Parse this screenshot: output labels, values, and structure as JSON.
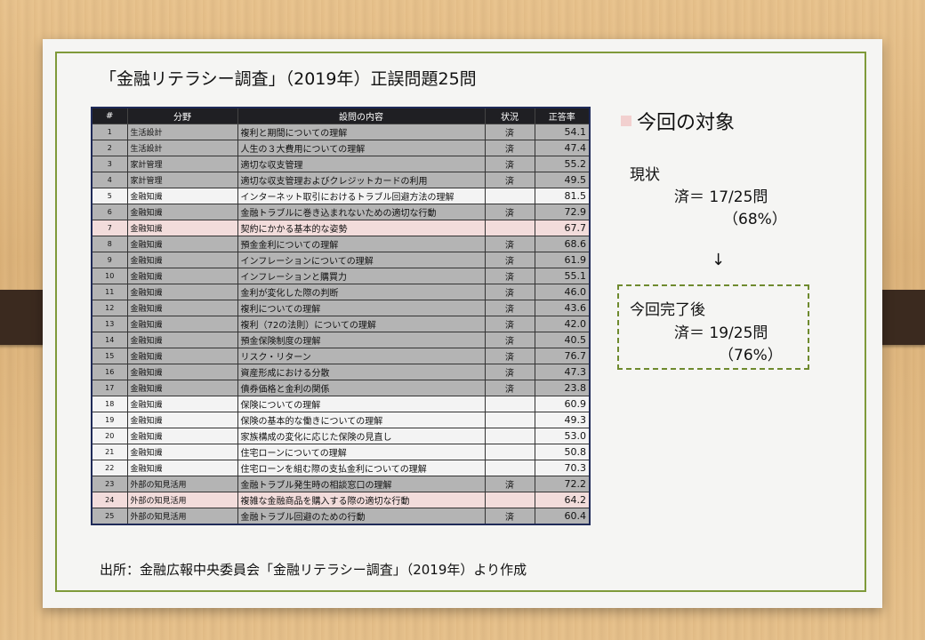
{
  "title": "「金融リテラシー調査」（2019年）正誤問題25問",
  "table": {
    "headers": [
      "#",
      "分野",
      "設問の内容",
      "状況",
      "正答率"
    ],
    "rows": [
      {
        "num": "1",
        "field": "生活設計",
        "content": "複利と期間についての理解",
        "status": "済",
        "rate": "54.1",
        "state": "done"
      },
      {
        "num": "2",
        "field": "生活設計",
        "content": "人生の３大費用についての理解",
        "status": "済",
        "rate": "47.4",
        "state": "done"
      },
      {
        "num": "3",
        "field": "家計管理",
        "content": "適切な収支管理",
        "status": "済",
        "rate": "55.2",
        "state": "done"
      },
      {
        "num": "4",
        "field": "家計管理",
        "content": "適切な収支管理およびクレジットカードの利用",
        "status": "済",
        "rate": "49.5",
        "state": "done"
      },
      {
        "num": "5",
        "field": "金融知識",
        "content": "インターネット取引におけるトラブル回避方法の理解",
        "status": "",
        "rate": "81.5",
        "state": "pending"
      },
      {
        "num": "6",
        "field": "金融知識",
        "content": "金融トラブルに巻き込まれないための適切な行動",
        "status": "済",
        "rate": "72.9",
        "state": "done"
      },
      {
        "num": "7",
        "field": "金融知識",
        "content": "契約にかかる基本的な姿勢",
        "status": "",
        "rate": "67.7",
        "state": "target"
      },
      {
        "num": "8",
        "field": "金融知識",
        "content": "預金金利についての理解",
        "status": "済",
        "rate": "68.6",
        "state": "done"
      },
      {
        "num": "9",
        "field": "金融知識",
        "content": "インフレーションについての理解",
        "status": "済",
        "rate": "61.9",
        "state": "done"
      },
      {
        "num": "10",
        "field": "金融知識",
        "content": "インフレーションと購買力",
        "status": "済",
        "rate": "55.1",
        "state": "done"
      },
      {
        "num": "11",
        "field": "金融知識",
        "content": "金利が変化した際の判断",
        "status": "済",
        "rate": "46.0",
        "state": "done"
      },
      {
        "num": "12",
        "field": "金融知識",
        "content": "複利についての理解",
        "status": "済",
        "rate": "43.6",
        "state": "done"
      },
      {
        "num": "13",
        "field": "金融知識",
        "content": "複利（72の法則）についての理解",
        "status": "済",
        "rate": "42.0",
        "state": "done"
      },
      {
        "num": "14",
        "field": "金融知識",
        "content": "預金保険制度の理解",
        "status": "済",
        "rate": "40.5",
        "state": "done"
      },
      {
        "num": "15",
        "field": "金融知識",
        "content": "リスク・リターン",
        "status": "済",
        "rate": "76.7",
        "state": "done"
      },
      {
        "num": "16",
        "field": "金融知識",
        "content": "資産形成における分散",
        "status": "済",
        "rate": "47.3",
        "state": "done"
      },
      {
        "num": "17",
        "field": "金融知識",
        "content": "債券価格と金利の関係",
        "status": "済",
        "rate": "23.8",
        "state": "done"
      },
      {
        "num": "18",
        "field": "金融知識",
        "content": "保険についての理解",
        "status": "",
        "rate": "60.9",
        "state": "pending"
      },
      {
        "num": "19",
        "field": "金融知識",
        "content": "保険の基本的な働きについての理解",
        "status": "",
        "rate": "49.3",
        "state": "pending"
      },
      {
        "num": "20",
        "field": "金融知識",
        "content": "家族構成の変化に応じた保険の見直し",
        "status": "",
        "rate": "53.0",
        "state": "pending"
      },
      {
        "num": "21",
        "field": "金融知識",
        "content": "住宅ローンについての理解",
        "status": "",
        "rate": "50.8",
        "state": "pending"
      },
      {
        "num": "22",
        "field": "金融知識",
        "content": "住宅ローンを組む際の支払金利についての理解",
        "status": "",
        "rate": "70.3",
        "state": "pending"
      },
      {
        "num": "23",
        "field": "外部の知見活用",
        "content": "金融トラブル発生時の相談窓口の理解",
        "status": "済",
        "rate": "72.2",
        "state": "done"
      },
      {
        "num": "24",
        "field": "外部の知見活用",
        "content": "複雑な金融商品を購入する際の適切な行動",
        "status": "",
        "rate": "64.2",
        "state": "target"
      },
      {
        "num": "25",
        "field": "外部の知見活用",
        "content": "金融トラブル回避のための行動",
        "status": "済",
        "rate": "60.4",
        "state": "done"
      }
    ]
  },
  "legend": {
    "label": "今回の対象",
    "color": "#f2d0cf"
  },
  "current": {
    "label": "現状",
    "value": "済＝ 17/25問",
    "percent": "（68%）"
  },
  "arrow": "↓",
  "after": {
    "label": "今回完了後",
    "value": "済＝ 19/25問",
    "percent": "（76%）"
  },
  "source": "出所：金融広報中央委員会「金融リテラシー調査」（2019年）より作成",
  "colors": {
    "done_row": "#b4b4b4",
    "pending_row": "#f3f3f3",
    "target_row": "#f2dcdb",
    "frame": "#7f9a3a",
    "header": "#1f1f23"
  }
}
